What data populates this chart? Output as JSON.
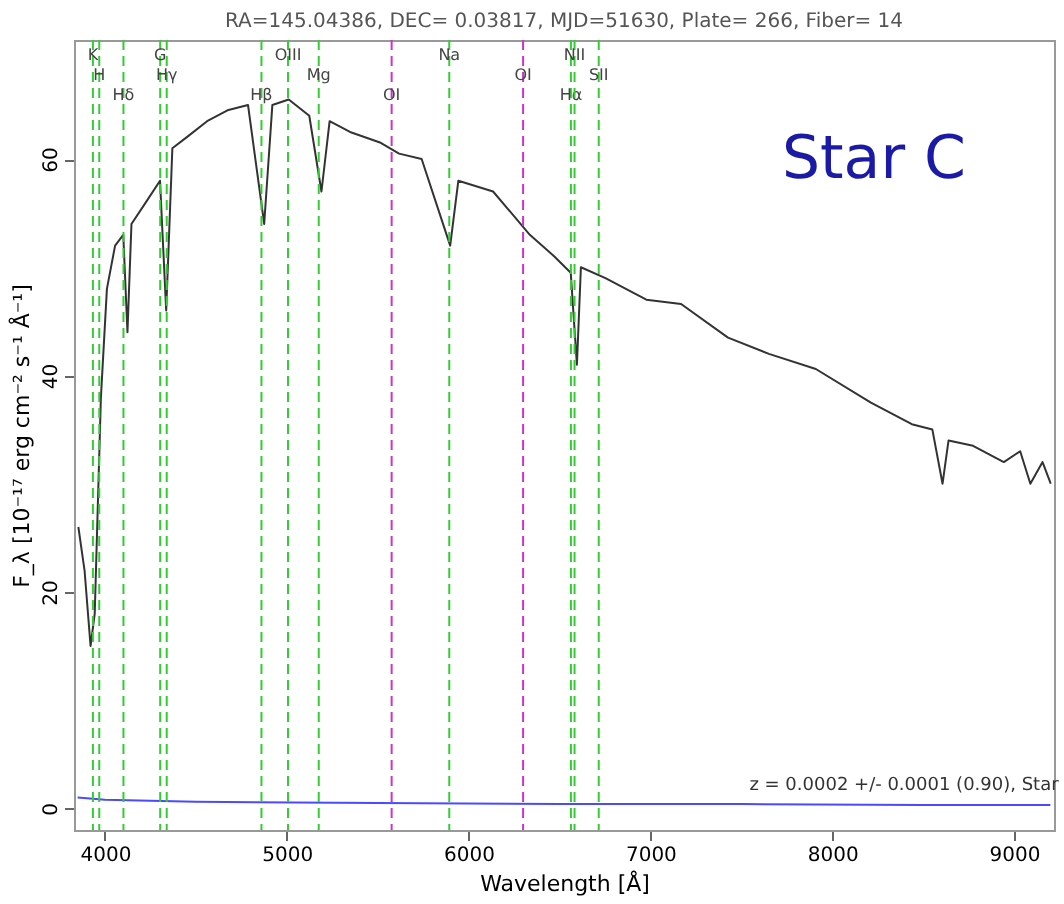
{
  "chart_data": {
    "type": "line",
    "title": "RA=145.04386, DEC= 0.03817, MJD=51630, Plate= 266, Fiber= 14",
    "xlabel": "Wavelength [Å]",
    "ylabel": "F_λ [10⁻¹⁷ erg cm⁻² s⁻¹ Å⁻¹]",
    "series": [
      {
        "color": "#333333",
        "x": [
          3854,
          3888,
          3921,
          3944,
          3978,
          4011,
          4056,
          4101,
          4124,
          4146,
          4225,
          4303,
          4337,
          4371,
          4449,
          4562,
          4674,
          4787,
          4876,
          4921,
          5011,
          5124,
          5191,
          5236,
          5348,
          5517,
          5618,
          5742,
          5899,
          5944,
          6135,
          6337,
          6472,
          6562,
          6596,
          6618,
          6753,
          6978,
          7169,
          7427,
          7652,
          7910,
          8213,
          8438,
          8551,
          8607,
          8640,
          8775,
          8944,
          9034,
          9090,
          9157,
          9202
        ],
        "values": [
          26,
          22,
          15,
          18,
          38,
          48,
          52,
          53,
          44,
          54,
          56,
          58,
          46,
          61,
          62,
          63.5,
          64.5,
          65,
          54,
          65,
          65.5,
          64,
          57,
          63.5,
          62.5,
          61.5,
          60.5,
          60,
          52,
          58,
          57,
          53,
          51,
          49.5,
          41,
          50,
          49,
          47,
          46.6,
          43.5,
          42,
          40.6,
          37.5,
          35.5,
          35,
          30,
          34,
          33.5,
          32,
          33,
          30,
          32,
          30
        ]
      },
      {
        "color": "#4a4aff",
        "x": [
          3850,
          4000,
          4500,
          5500,
          6500,
          7500,
          8500,
          9200
        ],
        "values": [
          1,
          0.8,
          0.6,
          0.5,
          0.4,
          0.4,
          0.3,
          0.3
        ]
      }
    ],
    "xlim": [
      3830,
      9220
    ],
    "ylim": [
      -2,
      71
    ],
    "xticks": [
      4000,
      5000,
      6000,
      7000,
      8000,
      9000
    ],
    "yticks": [
      0,
      20,
      40,
      60
    ],
    "grid": false,
    "line_style": "solid",
    "marker": "none",
    "ref_lines": [
      {
        "axis": "x",
        "value": 3934,
        "label": "K",
        "color": "#33cc33",
        "line_style": "dashed"
      },
      {
        "axis": "x",
        "value": 3969,
        "label": "H",
        "color": "#33cc33",
        "line_style": "dashed"
      },
      {
        "axis": "x",
        "value": 4102,
        "label": "Hδ",
        "color": "#33cc33",
        "line_style": "dashed"
      },
      {
        "axis": "x",
        "value": 4304,
        "label": "G",
        "color": "#33cc33",
        "line_style": "dashed"
      },
      {
        "axis": "x",
        "value": 4340,
        "label": "Hγ",
        "color": "#33cc33",
        "line_style": "dashed"
      },
      {
        "axis": "x",
        "value": 4861,
        "label": "Hβ",
        "color": "#33cc33",
        "line_style": "dashed"
      },
      {
        "axis": "x",
        "value": 5007,
        "label": "OIII",
        "color": "#33cc33",
        "line_style": "dashed"
      },
      {
        "axis": "x",
        "value": 5176,
        "label": "Mg",
        "color": "#33cc33",
        "line_style": "dashed"
      },
      {
        "axis": "x",
        "value": 5577,
        "label": "OI",
        "color": "#cc33cc",
        "line_style": "dashed"
      },
      {
        "axis": "x",
        "value": 5894,
        "label": "Na",
        "color": "#33cc33",
        "line_style": "dashed"
      },
      {
        "axis": "x",
        "value": 6300,
        "label": "OI",
        "color": "#cc33cc",
        "line_style": "dashed"
      },
      {
        "axis": "x",
        "value": 6563,
        "label": "Hα",
        "color": "#33cc33",
        "line_style": "dashed"
      },
      {
        "axis": "x",
        "value": 6583,
        "label": "NII",
        "color": "#33cc33",
        "line_style": "dashed"
      },
      {
        "axis": "x",
        "value": 6716,
        "label": "SII",
        "color": "#33cc33",
        "line_style": "dashed"
      }
    ],
    "annotations": [
      "Star C",
      "z = 0.0002 +/- 0.0001 (0.90), Star"
    ]
  }
}
